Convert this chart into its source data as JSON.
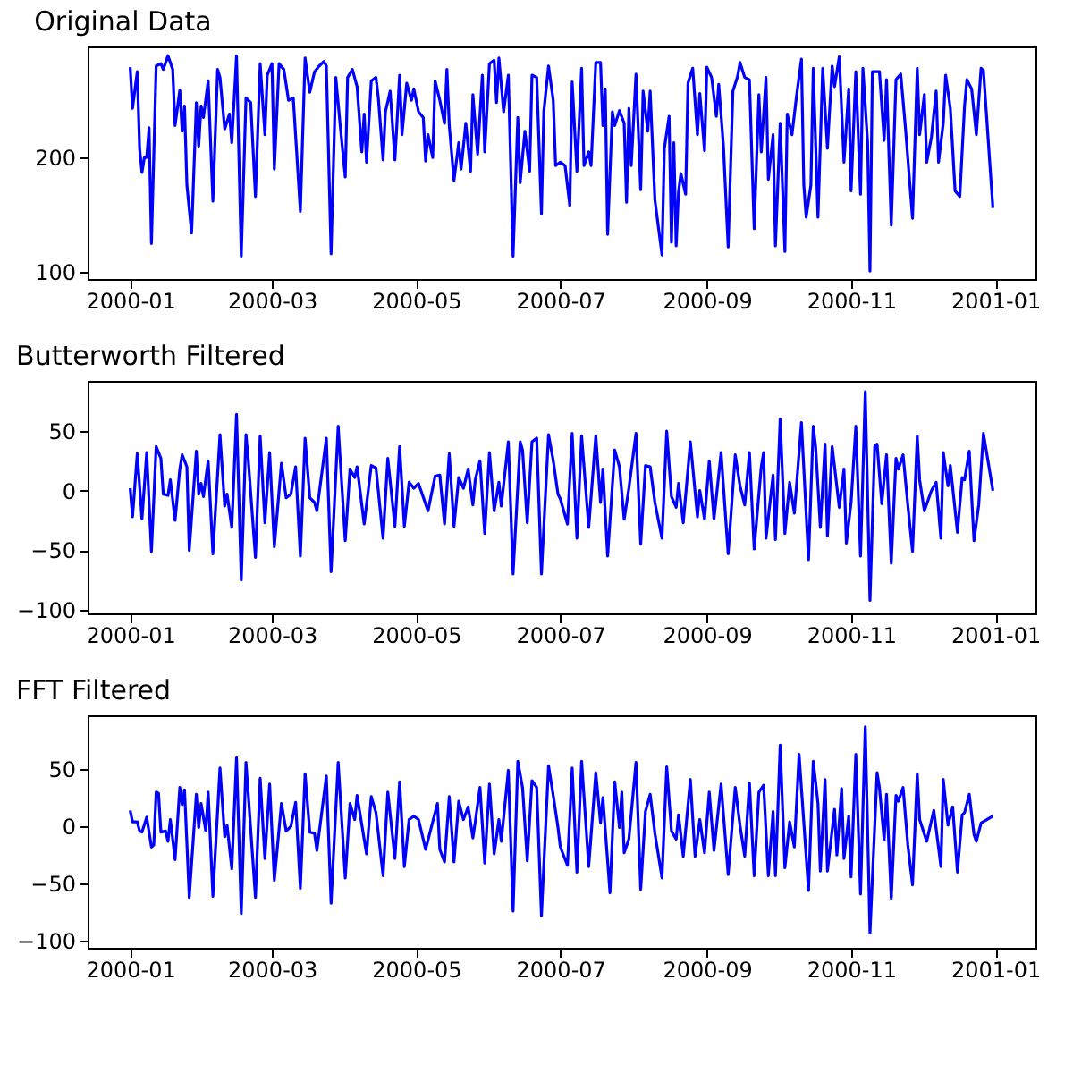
{
  "chart_data": [
    {
      "type": "line",
      "title": "Original Data",
      "xlim": [
        "1999-12-14",
        "2001-01-18"
      ],
      "xticks": [
        "2000-01",
        "2000-03",
        "2000-05",
        "2000-07",
        "2000-09",
        "2000-11",
        "2001-01"
      ],
      "ylim": [
        94,
        297
      ],
      "yticks": [
        100,
        200
      ],
      "grid": false,
      "series": [
        {
          "color": "#0000ff",
          "x": [
            "2000-01-01",
            "2000-01-02",
            "2000-01-04",
            "2000-01-05",
            "2000-01-06",
            "2000-01-07",
            "2000-01-08",
            "2000-01-09",
            "2000-01-10",
            "2000-01-12",
            "2000-01-14",
            "2000-01-15",
            "2000-01-17",
            "2000-01-19",
            "2000-01-20",
            "2000-01-22",
            "2000-01-23",
            "2000-01-24",
            "2000-01-25",
            "2000-01-27",
            "2000-01-29",
            "2000-01-30",
            "2000-01-31",
            "2000-02-01",
            "2000-02-03",
            "2000-02-05",
            "2000-02-07",
            "2000-02-08",
            "2000-02-10",
            "2000-02-12",
            "2000-02-13",
            "2000-02-15",
            "2000-02-17",
            "2000-02-19",
            "2000-02-21",
            "2000-02-23",
            "2000-02-25",
            "2000-02-27",
            "2000-02-28",
            "2000-03-01",
            "2000-03-02",
            "2000-03-04",
            "2000-03-06",
            "2000-03-08",
            "2000-03-10",
            "2000-03-13",
            "2000-03-15",
            "2000-03-17",
            "2000-03-19",
            "2000-03-21",
            "2000-03-23",
            "2000-03-24",
            "2000-03-26",
            "2000-03-28",
            "2000-03-30",
            "2000-04-01",
            "2000-04-02",
            "2000-04-04",
            "2000-04-06",
            "2000-04-08",
            "2000-04-09",
            "2000-04-10",
            "2000-04-12",
            "2000-04-14",
            "2000-04-15",
            "2000-04-17",
            "2000-04-18",
            "2000-04-20",
            "2000-04-22",
            "2000-04-24",
            "2000-04-25",
            "2000-04-27",
            "2000-04-29",
            "2000-04-30",
            "2000-05-02",
            "2000-05-04",
            "2000-05-05",
            "2000-05-06",
            "2000-05-08",
            "2000-05-09",
            "2000-05-11",
            "2000-05-13",
            "2000-05-14",
            "2000-05-15",
            "2000-05-17",
            "2000-05-19",
            "2000-05-20",
            "2000-05-22",
            "2000-05-24",
            "2000-05-25",
            "2000-05-27",
            "2000-05-29",
            "2000-05-30",
            "2000-06-01",
            "2000-06-03",
            "2000-06-04",
            "2000-06-05",
            "2000-06-07",
            "2000-06-09",
            "2000-06-11",
            "2000-06-13",
            "2000-06-14",
            "2000-06-16",
            "2000-06-18",
            "2000-06-19",
            "2000-06-21",
            "2000-06-23",
            "2000-06-24",
            "2000-06-26",
            "2000-06-28",
            "2000-06-29",
            "2000-07-01",
            "2000-07-03",
            "2000-07-05",
            "2000-07-06",
            "2000-07-08",
            "2000-07-10",
            "2000-07-11",
            "2000-07-13",
            "2000-07-14",
            "2000-07-16",
            "2000-07-18",
            "2000-07-19",
            "2000-07-20",
            "2000-07-21",
            "2000-07-23",
            "2000-07-24",
            "2000-07-26",
            "2000-07-28",
            "2000-07-29",
            "2000-07-30",
            "2000-07-31",
            "2000-08-02",
            "2000-08-04",
            "2000-08-05",
            "2000-08-07",
            "2000-08-08",
            "2000-08-10",
            "2000-08-13",
            "2000-08-14",
            "2000-08-16",
            "2000-08-17",
            "2000-08-18",
            "2000-08-19",
            "2000-08-20",
            "2000-08-21",
            "2000-08-23",
            "2000-08-24",
            "2000-08-26",
            "2000-08-28",
            "2000-08-29",
            "2000-08-31",
            "2000-09-01",
            "2000-09-03",
            "2000-09-05",
            "2000-09-06",
            "2000-09-08",
            "2000-09-10",
            "2000-09-12",
            "2000-09-14",
            "2000-09-15",
            "2000-09-17",
            "2000-09-19",
            "2000-09-21",
            "2000-09-23",
            "2000-09-24",
            "2000-09-26",
            "2000-09-27",
            "2000-09-29",
            "2000-09-30",
            "2000-10-02",
            "2000-10-04",
            "2000-10-05",
            "2000-10-07",
            "2000-10-09",
            "2000-10-11",
            "2000-10-12",
            "2000-10-13",
            "2000-10-15",
            "2000-10-16",
            "2000-10-18",
            "2000-10-19",
            "2000-10-20",
            "2000-10-22",
            "2000-10-24",
            "2000-10-25",
            "2000-10-27",
            "2000-10-29",
            "2000-10-31",
            "2000-11-01",
            "2000-11-03",
            "2000-11-05",
            "2000-11-06",
            "2000-11-08",
            "2000-11-09",
            "2000-11-10",
            "2000-11-13",
            "2000-11-15",
            "2000-11-16",
            "2000-11-18",
            "2000-11-20",
            "2000-11-22",
            "2000-11-24",
            "2000-11-27",
            "2000-11-29",
            "2000-11-30",
            "2000-12-02",
            "2000-12-03",
            "2000-12-05",
            "2000-12-07",
            "2000-12-08",
            "2000-12-10",
            "2000-12-11",
            "2000-12-13",
            "2000-12-15",
            "2000-12-17",
            "2000-12-19",
            "2000-12-20",
            "2000-12-22",
            "2000-12-24",
            "2000-12-26",
            "2000-12-27",
            "2000-12-31"
          ],
          "values": [
            279,
            243,
            275,
            208,
            187,
            200,
            200,
            226,
            125,
            280,
            282,
            277,
            289,
            277,
            228,
            259,
            223,
            245,
            176,
            134,
            248,
            210,
            245,
            235,
            267,
            162,
            277,
            270,
            225,
            238,
            213,
            289,
            114,
            252,
            248,
            166,
            282,
            220,
            272,
            282,
            190,
            282,
            277,
            250,
            252,
            153,
            287,
            257,
            275,
            280,
            284,
            280,
            116,
            270,
            225,
            183,
            270,
            277,
            262,
            205,
            238,
            196,
            267,
            270,
            252,
            198,
            240,
            258,
            198,
            272,
            220,
            265,
            250,
            260,
            240,
            235,
            197,
            220,
            200,
            267,
            250,
            230,
            277,
            228,
            180,
            213,
            190,
            230,
            188,
            255,
            203,
            272,
            205,
            282,
            285,
            248,
            287,
            240,
            272,
            114,
            235,
            178,
            223,
            188,
            272,
            270,
            151,
            240,
            280,
            250,
            193,
            196,
            193,
            158,
            266,
            188,
            278,
            193,
            205,
            193,
            283,
            283,
            228,
            260,
            133,
            240,
            228,
            241,
            230,
            161,
            243,
            193,
            273,
            172,
            258,
            223,
            258,
            163,
            115,
            208,
            236,
            126,
            213,
            123,
            170,
            186,
            168,
            265,
            278,
            220,
            256,
            206,
            279,
            270,
            236,
            264,
            210,
            122,
            258,
            271,
            283,
            270,
            268,
            138,
            255,
            205,
            270,
            181,
            220,
            123,
            230,
            118,
            238,
            220,
            255,
            286,
            176,
            148,
            176,
            278,
            148,
            213,
            278,
            208,
            280,
            262,
            288,
            196,
            260,
            171,
            275,
            168,
            278,
            213,
            101,
            275,
            275,
            215,
            268,
            141,
            268,
            273,
            226,
            147,
            278,
            220,
            255,
            196,
            218,
            258,
            196,
            230,
            272,
            243,
            171,
            166,
            245,
            268,
            260,
            220,
            278,
            276,
            156
          ]
        }
      ]
    },
    {
      "type": "line",
      "title": "Butterworth Filtered",
      "xlim": [
        "1999-12-14",
        "2001-01-18"
      ],
      "xticks": [
        "2000-01",
        "2000-03",
        "2000-05",
        "2000-07",
        "2000-09",
        "2000-11",
        "2001-01"
      ],
      "ylim": [
        -103,
        92
      ],
      "yticks": [
        -100,
        -50,
        0,
        50
      ],
      "grid": false,
      "series": [
        {
          "color": "#0000ff",
          "x": [
            "2000-01-01",
            "2000-01-02",
            "2000-01-04",
            "2000-01-06",
            "2000-01-08",
            "2000-01-10",
            "2000-01-12",
            "2000-01-14",
            "2000-01-15",
            "2000-01-17",
            "2000-01-18",
            "2000-01-20",
            "2000-01-22",
            "2000-01-23",
            "2000-01-25",
            "2000-01-26",
            "2000-01-29",
            "2000-01-30",
            "2000-01-31",
            "2000-02-01",
            "2000-02-03",
            "2000-02-05",
            "2000-02-08",
            "2000-02-10",
            "2000-02-11",
            "2000-02-13",
            "2000-02-15",
            "2000-02-17",
            "2000-02-19",
            "2000-02-20",
            "2000-02-23",
            "2000-02-25",
            "2000-02-27",
            "2000-02-29",
            "2000-03-02",
            "2000-03-05",
            "2000-03-07",
            "2000-03-09",
            "2000-03-11",
            "2000-03-13",
            "2000-03-15",
            "2000-03-17",
            "2000-03-19",
            "2000-03-20",
            "2000-03-24",
            "2000-03-26",
            "2000-03-29",
            "2000-04-01",
            "2000-04-03",
            "2000-04-05",
            "2000-04-06",
            "2000-04-09",
            "2000-04-12",
            "2000-04-14",
            "2000-04-17",
            "2000-04-19",
            "2000-04-22",
            "2000-04-24",
            "2000-04-26",
            "2000-04-28",
            "2000-04-30",
            "2000-05-02",
            "2000-05-06",
            "2000-05-09",
            "2000-05-11",
            "2000-05-13",
            "2000-05-15",
            "2000-05-17",
            "2000-05-19",
            "2000-05-21",
            "2000-05-23",
            "2000-05-25",
            "2000-05-26",
            "2000-05-28",
            "2000-05-30",
            "2000-06-01",
            "2000-06-03",
            "2000-06-05",
            "2000-06-06",
            "2000-06-09",
            "2000-06-11",
            "2000-06-14",
            "2000-06-15",
            "2000-06-17",
            "2000-06-19",
            "2000-06-21",
            "2000-06-23",
            "2000-06-26",
            "2000-06-28",
            "2000-06-30",
            "2000-07-01",
            "2000-07-04",
            "2000-07-06",
            "2000-07-08",
            "2000-07-10",
            "2000-07-13",
            "2000-07-16",
            "2000-07-18",
            "2000-07-19",
            "2000-07-21",
            "2000-07-24",
            "2000-07-26",
            "2000-07-28",
            "2000-07-30",
            "2000-08-02",
            "2000-08-04",
            "2000-08-06",
            "2000-08-08",
            "2000-08-10",
            "2000-08-13",
            "2000-08-15",
            "2000-08-17",
            "2000-08-19",
            "2000-08-20",
            "2000-08-22",
            "2000-08-25",
            "2000-08-28",
            "2000-08-29",
            "2000-08-31",
            "2000-09-02",
            "2000-09-04",
            "2000-09-07",
            "2000-09-10",
            "2000-09-13",
            "2000-09-15",
            "2000-09-17",
            "2000-09-19",
            "2000-09-21",
            "2000-09-24",
            "2000-09-25",
            "2000-09-26",
            "2000-09-29",
            "2000-09-30",
            "2000-10-02",
            "2000-10-04",
            "2000-10-06",
            "2000-10-08",
            "2000-10-11",
            "2000-10-14",
            "2000-10-16",
            "2000-10-17",
            "2000-10-19",
            "2000-10-21",
            "2000-10-22",
            "2000-10-24",
            "2000-10-27",
            "2000-10-29",
            "2000-10-30",
            "2000-11-01",
            "2000-11-03",
            "2000-11-05",
            "2000-11-07",
            "2000-11-09",
            "2000-11-11",
            "2000-11-12",
            "2000-11-14",
            "2000-11-16",
            "2000-11-18",
            "2000-11-20",
            "2000-11-21",
            "2000-11-23",
            "2000-11-25",
            "2000-11-27",
            "2000-11-29",
            "2000-11-30",
            "2000-12-02",
            "2000-12-05",
            "2000-12-07",
            "2000-12-09",
            "2000-12-10",
            "2000-12-12",
            "2000-12-13",
            "2000-12-16",
            "2000-12-18",
            "2000-12-19",
            "2000-12-21",
            "2000-12-23",
            "2000-12-25",
            "2000-12-27",
            "2000-12-31"
          ],
          "values": [
            2,
            -22,
            31,
            -24,
            32,
            -51,
            37,
            27,
            -3,
            -4,
            9,
            -25,
            18,
            30,
            20,
            -50,
            33,
            -3,
            6,
            -5,
            25,
            -53,
            47,
            -13,
            -3,
            -31,
            64,
            -75,
            47,
            25,
            -56,
            46,
            -27,
            32,
            -47,
            23,
            -6,
            -3,
            20,
            -55,
            44,
            -6,
            -10,
            -17,
            44,
            -68,
            54,
            -42,
            18,
            11,
            20,
            -28,
            21,
            19,
            -40,
            27,
            -30,
            37,
            -30,
            7,
            2,
            6,
            -17,
            12,
            13,
            -28,
            31,
            -30,
            11,
            2,
            18,
            -12,
            9,
            25,
            -36,
            32,
            -17,
            7,
            -13,
            41,
            -70,
            41,
            34,
            -27,
            41,
            44,
            -70,
            47,
            25,
            -3,
            -7,
            -28,
            48,
            -40,
            46,
            -31,
            46,
            -10,
            18,
            -55,
            34,
            20,
            -24,
            2,
            48,
            -45,
            21,
            20,
            -10,
            -40,
            50,
            -5,
            -14,
            6,
            -27,
            41,
            -22,
            0,
            -24,
            25,
            -24,
            32,
            -53,
            30,
            4,
            -12,
            32,
            -49,
            20,
            32,
            -40,
            13,
            -41,
            60,
            -36,
            7,
            -19,
            57,
            -58,
            54,
            37,
            -31,
            39,
            -38,
            37,
            -14,
            18,
            -44,
            -10,
            54,
            -55,
            83,
            -92,
            37,
            39,
            -11,
            30,
            -61,
            27,
            18,
            30,
            -12,
            -51,
            46,
            9,
            -17,
            0,
            7,
            -40,
            32,
            4,
            21,
            -35,
            11,
            9,
            33,
            -42,
            -12,
            48,
            0
          ]
        }
      ]
    },
    {
      "type": "line",
      "title": "FFT Filtered",
      "xlim": [
        "1999-12-14",
        "2001-01-18"
      ],
      "xticks": [
        "2000-01",
        "2000-03",
        "2000-05",
        "2000-07",
        "2000-09",
        "2000-11",
        "2001-01"
      ],
      "ylim": [
        -106,
        97
      ],
      "yticks": [
        -100,
        -50,
        0,
        50
      ],
      "grid": false,
      "series": [
        {
          "color": "#0000ff",
          "x": [
            "2000-01-01",
            "2000-01-02",
            "2000-01-04",
            "2000-01-05",
            "2000-01-06",
            "2000-01-08",
            "2000-01-10",
            "2000-01-11",
            "2000-01-12",
            "2000-01-13",
            "2000-01-14",
            "2000-01-16",
            "2000-01-17",
            "2000-01-18",
            "2000-01-20",
            "2000-01-22",
            "2000-01-23",
            "2000-01-24",
            "2000-01-26",
            "2000-01-29",
            "2000-01-30",
            "2000-01-31",
            "2000-02-02",
            "2000-02-03",
            "2000-02-05",
            "2000-02-08",
            "2000-02-10",
            "2000-02-11",
            "2000-02-13",
            "2000-02-15",
            "2000-02-17",
            "2000-02-19",
            "2000-02-20",
            "2000-02-23",
            "2000-02-25",
            "2000-02-27",
            "2000-02-29",
            "2000-03-02",
            "2000-03-05",
            "2000-03-07",
            "2000-03-09",
            "2000-03-11",
            "2000-03-13",
            "2000-03-15",
            "2000-03-17",
            "2000-03-19",
            "2000-03-20",
            "2000-03-24",
            "2000-03-26",
            "2000-03-29",
            "2000-04-01",
            "2000-04-03",
            "2000-04-05",
            "2000-04-06",
            "2000-04-10",
            "2000-04-12",
            "2000-04-14",
            "2000-04-17",
            "2000-04-19",
            "2000-04-22",
            "2000-04-24",
            "2000-04-26",
            "2000-04-28",
            "2000-04-30",
            "2000-05-02",
            "2000-05-05",
            "2000-05-10",
            "2000-05-11",
            "2000-05-13",
            "2000-05-15",
            "2000-05-17",
            "2000-05-19",
            "2000-05-21",
            "2000-05-23",
            "2000-05-25",
            "2000-05-26",
            "2000-05-28",
            "2000-05-30",
            "2000-06-01",
            "2000-06-03",
            "2000-06-05",
            "2000-06-06",
            "2000-06-09",
            "2000-06-11",
            "2000-06-13",
            "2000-06-15",
            "2000-06-17",
            "2000-06-19",
            "2000-06-21",
            "2000-06-23",
            "2000-06-26",
            "2000-06-28",
            "2000-06-30",
            "2000-07-01",
            "2000-07-04",
            "2000-07-06",
            "2000-07-08",
            "2000-07-10",
            "2000-07-13",
            "2000-07-16",
            "2000-07-18",
            "2000-07-19",
            "2000-07-22",
            "2000-07-24",
            "2000-07-26",
            "2000-07-27",
            "2000-07-28",
            "2000-07-30",
            "2000-08-02",
            "2000-08-04",
            "2000-08-06",
            "2000-08-08",
            "2000-08-10",
            "2000-08-13",
            "2000-08-15",
            "2000-08-17",
            "2000-08-19",
            "2000-08-20",
            "2000-08-22",
            "2000-08-25",
            "2000-08-27",
            "2000-08-29",
            "2000-08-31",
            "2000-09-02",
            "2000-09-04",
            "2000-09-07",
            "2000-09-10",
            "2000-09-13",
            "2000-09-15",
            "2000-09-17",
            "2000-09-19",
            "2000-09-21",
            "2000-09-23",
            "2000-09-25",
            "2000-09-27",
            "2000-09-29",
            "2000-09-30",
            "2000-10-02",
            "2000-10-04",
            "2000-10-06",
            "2000-10-08",
            "2000-10-10",
            "2000-10-14",
            "2000-10-16",
            "2000-10-18",
            "2000-10-19",
            "2000-10-21",
            "2000-10-22",
            "2000-10-25",
            "2000-10-26",
            "2000-10-28",
            "2000-10-29",
            "2000-10-31",
            "2000-11-01",
            "2000-11-03",
            "2000-11-05",
            "2000-11-07",
            "2000-11-09",
            "2000-11-12",
            "2000-11-13",
            "2000-11-15",
            "2000-11-16",
            "2000-11-18",
            "2000-11-20",
            "2000-11-21",
            "2000-11-23",
            "2000-11-25",
            "2000-11-27",
            "2000-11-29",
            "2000-11-30",
            "2000-12-03",
            "2000-12-06",
            "2000-12-09",
            "2000-12-10",
            "2000-12-12",
            "2000-12-14",
            "2000-12-16",
            "2000-12-18",
            "2000-12-19",
            "2000-12-21",
            "2000-12-23",
            "2000-12-24",
            "2000-12-26",
            "2000-12-31"
          ],
          "values": [
            14,
            4,
            4,
            -4,
            -5,
            8,
            -18,
            -16,
            30,
            29,
            -5,
            -4,
            -13,
            6,
            -29,
            34,
            19,
            32,
            -62,
            28,
            -1,
            20,
            -4,
            30,
            -61,
            51,
            -9,
            1,
            -37,
            60,
            -76,
            56,
            27,
            -62,
            42,
            -28,
            37,
            -47,
            20,
            -4,
            0,
            21,
            -54,
            46,
            -5,
            -6,
            -21,
            44,
            -67,
            56,
            -45,
            20,
            6,
            27,
            -24,
            26,
            12,
            -43,
            30,
            -28,
            39,
            -35,
            6,
            9,
            6,
            -20,
            20,
            -20,
            -31,
            26,
            -31,
            22,
            6,
            17,
            -10,
            4,
            34,
            -32,
            37,
            -24,
            6,
            -13,
            49,
            -74,
            57,
            34,
            -30,
            40,
            34,
            -78,
            53,
            27,
            -1,
            -18,
            -34,
            51,
            -40,
            57,
            -35,
            47,
            3,
            25,
            -58,
            39,
            -1,
            30,
            -23,
            -11,
            56,
            -55,
            13,
            28,
            -6,
            -45,
            52,
            -4,
            -11,
            10,
            -26,
            41,
            -26,
            6,
            -23,
            30,
            -21,
            37,
            -42,
            34,
            1,
            -26,
            38,
            -43,
            30,
            36,
            -43,
            13,
            -43,
            71,
            -36,
            4,
            -18,
            63,
            -56,
            57,
            20,
            -39,
            41,
            -39,
            15,
            -25,
            33,
            -28,
            9,
            -44,
            63,
            -59,
            87,
            -93,
            47,
            34,
            -12,
            28,
            -63,
            27,
            22,
            34,
            -16,
            -51,
            46,
            6,
            -13,
            14,
            -35,
            41,
            1,
            17,
            -40,
            10,
            12,
            28,
            -7,
            -13,
            3,
            9
          ]
        }
      ]
    }
  ]
}
